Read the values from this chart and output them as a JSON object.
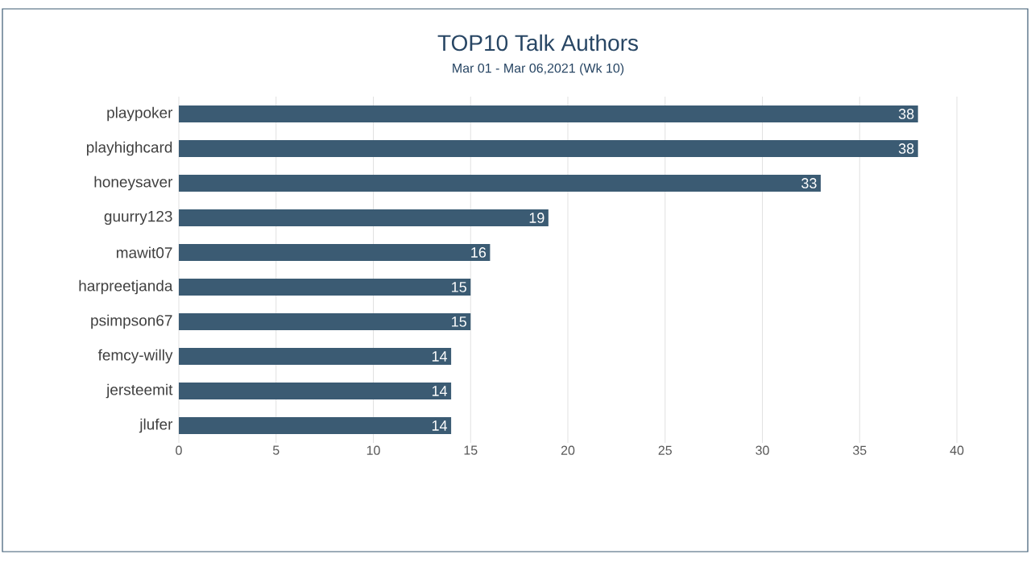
{
  "chart_data": {
    "type": "bar",
    "orientation": "horizontal",
    "title": "TOP10 Talk Authors",
    "subtitle": "Mar 01 - Mar 06,2021 (Wk 10)",
    "categories": [
      "playpoker",
      "playhighcard",
      "honeysaver",
      "guurry123",
      "mawit07",
      "harpreetjanda",
      "psimpson67",
      "femcy-willy",
      "jersteemit",
      "jlufer"
    ],
    "values": [
      38,
      38,
      33,
      19,
      16,
      15,
      15,
      14,
      14,
      14
    ],
    "color": "#3b5b73",
    "xlim": [
      0,
      40
    ],
    "xticks": [
      0,
      5,
      10,
      15,
      20,
      25,
      30,
      35,
      40
    ],
    "grid": "x",
    "data_labels": true
  }
}
